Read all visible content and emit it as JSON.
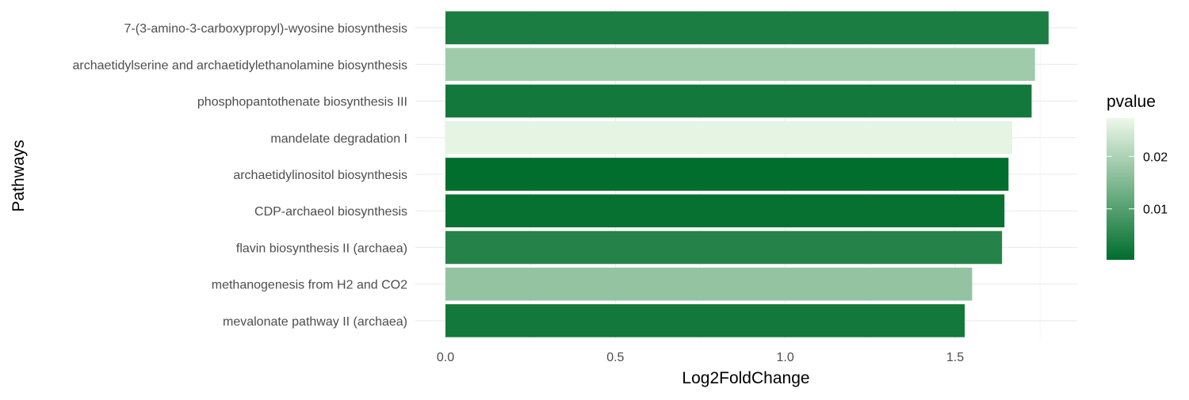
{
  "chart_data": {
    "type": "bar",
    "orientation": "horizontal",
    "xlabel": "Log2FoldChange",
    "ylabel": "Pathways",
    "xlim": [
      0,
      1.85
    ],
    "x_ticks": [
      {
        "value": 0,
        "label": "0.0"
      },
      {
        "value": 0.5,
        "label": "0.5"
      },
      {
        "value": 1.0,
        "label": "1.0"
      },
      {
        "value": 1.5,
        "label": "1.5"
      }
    ],
    "grid": true,
    "categories": [
      "7-(3-amino-3-carboxypropyl)-wyosine biosynthesis",
      "archaetidylserine and archaetidylethanolamine biosynthesis",
      "phosphopantothenate biosynthesis III",
      "mandelate degradation I",
      "archaetidylinositol biosynthesis",
      "CDP-archaeol biosynthesis",
      "flavin biosynthesis II (archaea)",
      "methanogenesis from H2 and CO2",
      "mevalonate pathway II (archaea)"
    ],
    "values": [
      1.775,
      1.735,
      1.725,
      1.668,
      1.657,
      1.645,
      1.638,
      1.55,
      1.528
    ],
    "pvalues": [
      0.0035,
      0.0185,
      0.0025,
      0.0265,
      0.0005,
      0.001,
      0.0045,
      0.017,
      0.0025
    ],
    "legend": {
      "title": "pvalue",
      "position": "right",
      "min": 0.0003,
      "max": 0.0273,
      "ticks": [
        {
          "value": 0.01,
          "label": "0.01"
        },
        {
          "value": 0.02,
          "label": "0.02"
        }
      ],
      "color_low": "#006d2c",
      "color_high": "#edf8e9"
    }
  }
}
